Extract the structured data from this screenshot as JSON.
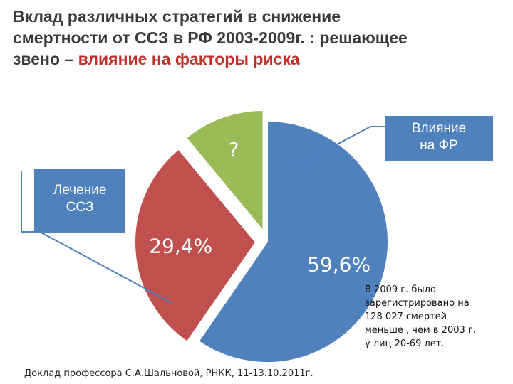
{
  "title": {
    "line1": "Вклад различных стратегий в снижение",
    "line2": "смертности от ССЗ в РФ 2003-2009г. : решающее",
    "line3_prefix": "звено – ",
    "line3_accent": "влияние на факторы риска"
  },
  "callouts": {
    "fr_line1": "Влияние",
    "fr_line2": "на ФР",
    "ssz_line1": "Лечение",
    "ssz_line2": "ССЗ"
  },
  "note": {
    "line1": "В 2009 г. было",
    "line2": "зарегистрировано на",
    "line3": "128 027 смертей",
    "line4": "меньше , чем в 2003 г.",
    "line5": "у лиц 20-69 лет."
  },
  "source": "Доклад профессора С.А.Шальновой, РНКК, 11-13.10.2011г.",
  "colors": {
    "blue": "#4f81bd",
    "red": "#c0504d",
    "green": "#9bbb59",
    "title_accent": "#c0312c"
  },
  "chart_data": {
    "type": "pie",
    "slices": [
      {
        "name": "Влияние на ФР",
        "value": 59.6,
        "label": "59,6%",
        "color": "#4f81bd"
      },
      {
        "name": "Лечение ССЗ",
        "value": 29.4,
        "label": "29,4%",
        "color": "#c0504d"
      },
      {
        "name": "",
        "value": 11.0,
        "label": "?",
        "color": "#9bbb59"
      }
    ]
  }
}
